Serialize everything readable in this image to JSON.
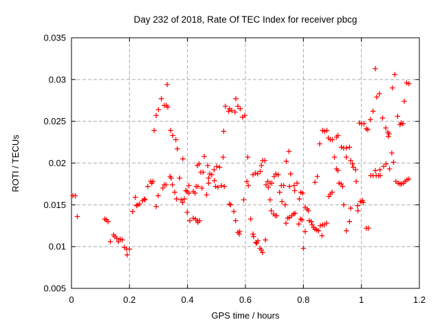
{
  "chart_data": {
    "type": "scatter",
    "title": "Day 232 of 2018, Rate Of TEC Index for receiver pbcg",
    "xlabel": "GPS time / hours",
    "ylabel": "ROTI / TECUs",
    "xlim": [
      0,
      1.2
    ],
    "ylim": [
      0.005,
      0.035
    ],
    "xticks": [
      "0",
      "0.2",
      "0.4",
      "0.6",
      "0.8",
      "1",
      "1.2"
    ],
    "yticks": [
      "0.005",
      "0.01",
      "0.015",
      "0.02",
      "0.025",
      "0.03",
      "0.035"
    ],
    "grid": true,
    "legend": "none",
    "marker": "plus",
    "marker_color": "#ff0000",
    "grid_color": "#a8a8a8",
    "axis_color": "#000000",
    "points": [
      [
        0.005,
        0.0161
      ],
      [
        0.013,
        0.0161
      ],
      [
        0.02,
        0.0136
      ],
      [
        0.115,
        0.0133
      ],
      [
        0.12,
        0.0132
      ],
      [
        0.126,
        0.013
      ],
      [
        0.134,
        0.0106
      ],
      [
        0.145,
        0.0114
      ],
      [
        0.15,
        0.0112
      ],
      [
        0.156,
        0.011
      ],
      [
        0.162,
        0.0106
      ],
      [
        0.168,
        0.0109
      ],
      [
        0.175,
        0.0108
      ],
      [
        0.183,
        0.0099
      ],
      [
        0.19,
        0.0097
      ],
      [
        0.2,
        0.0097
      ],
      [
        0.192,
        0.009
      ],
      [
        0.211,
        0.0142
      ],
      [
        0.22,
        0.0159
      ],
      [
        0.224,
        0.0149
      ],
      [
        0.229,
        0.015
      ],
      [
        0.235,
        0.0151
      ],
      [
        0.245,
        0.0155
      ],
      [
        0.251,
        0.0157
      ],
      [
        0.254,
        0.0156
      ],
      [
        0.263,
        0.0172
      ],
      [
        0.273,
        0.0178
      ],
      [
        0.277,
        0.0176
      ],
      [
        0.281,
        0.0178
      ],
      [
        0.285,
        0.0239
      ],
      [
        0.292,
        0.0257
      ],
      [
        0.292,
        0.0148
      ],
      [
        0.299,
        0.0161
      ],
      [
        0.3,
        0.0264
      ],
      [
        0.31,
        0.0277
      ],
      [
        0.315,
        0.017
      ],
      [
        0.32,
        0.0174
      ],
      [
        0.32,
        0.0269
      ],
      [
        0.326,
        0.0174
      ],
      [
        0.327,
        0.0269
      ],
      [
        0.33,
        0.0294
      ],
      [
        0.332,
        0.0267
      ],
      [
        0.34,
        0.0184
      ],
      [
        0.342,
        0.0239
      ],
      [
        0.344,
        0.0182
      ],
      [
        0.348,
        0.0174
      ],
      [
        0.349,
        0.0233
      ],
      [
        0.356,
        0.0165
      ],
      [
        0.36,
        0.0228
      ],
      [
        0.362,
        0.0157
      ],
      [
        0.365,
        0.0217
      ],
      [
        0.373,
        0.0182
      ],
      [
        0.378,
        0.0156
      ],
      [
        0.383,
        0.0153
      ],
      [
        0.384,
        0.0205
      ],
      [
        0.389,
        0.0157
      ],
      [
        0.394,
        0.0167
      ],
      [
        0.399,
        0.0166
      ],
      [
        0.399,
        0.0141
      ],
      [
        0.405,
        0.0173
      ],
      [
        0.405,
        0.0164
      ],
      [
        0.408,
        0.0131
      ],
      [
        0.42,
        0.0166
      ],
      [
        0.42,
        0.0134
      ],
      [
        0.426,
        0.0164
      ],
      [
        0.428,
        0.0133
      ],
      [
        0.43,
        0.0172
      ],
      [
        0.434,
        0.0197
      ],
      [
        0.434,
        0.0131
      ],
      [
        0.436,
        0.0172
      ],
      [
        0.436,
        0.0129
      ],
      [
        0.44,
        0.0199
      ],
      [
        0.442,
        0.0131
      ],
      [
        0.446,
        0.0189
      ],
      [
        0.45,
        0.017
      ],
      [
        0.454,
        0.0189
      ],
      [
        0.458,
        0.0208
      ],
      [
        0.466,
        0.0162
      ],
      [
        0.47,
        0.0197
      ],
      [
        0.473,
        0.0182
      ],
      [
        0.473,
        0.0176
      ],
      [
        0.477,
        0.0187
      ],
      [
        0.484,
        0.0186
      ],
      [
        0.492,
        0.0192
      ],
      [
        0.493,
        0.0179
      ],
      [
        0.497,
        0.0172
      ],
      [
        0.501,
        0.0196
      ],
      [
        0.505,
        0.0171
      ],
      [
        0.511,
        0.0195
      ],
      [
        0.517,
        0.0173
      ],
      [
        0.523,
        0.0207
      ],
      [
        0.525,
        0.0238
      ],
      [
        0.527,
        0.0172
      ],
      [
        0.531,
        0.0268
      ],
      [
        0.542,
        0.0262
      ],
      [
        0.545,
        0.0265
      ],
      [
        0.545,
        0.0151
      ],
      [
        0.549,
        0.015
      ],
      [
        0.553,
        0.0263
      ],
      [
        0.56,
        0.0142
      ],
      [
        0.564,
        0.0261
      ],
      [
        0.566,
        0.0131
      ],
      [
        0.567,
        0.0277
      ],
      [
        0.574,
        0.0268
      ],
      [
        0.574,
        0.0117
      ],
      [
        0.579,
        0.0115
      ],
      [
        0.58,
        0.0118
      ],
      [
        0.582,
        0.0265
      ],
      [
        0.59,
        0.0255
      ],
      [
        0.594,
        0.0156
      ],
      [
        0.598,
        0.0257
      ],
      [
        0.605,
        0.0178
      ],
      [
        0.608,
        0.0207
      ],
      [
        0.61,
        0.0173
      ],
      [
        0.618,
        0.0133
      ],
      [
        0.626,
        0.0186
      ],
      [
        0.626,
        0.0115
      ],
      [
        0.628,
        0.0112
      ],
      [
        0.634,
        0.0188
      ],
      [
        0.636,
        0.0105
      ],
      [
        0.639,
        0.0104
      ],
      [
        0.642,
        0.0187
      ],
      [
        0.643,
        0.0107
      ],
      [
        0.65,
        0.0098
      ],
      [
        0.651,
        0.019
      ],
      [
        0.655,
        0.0197
      ],
      [
        0.655,
        0.0096
      ],
      [
        0.659,
        0.0203
      ],
      [
        0.659,
        0.0093
      ],
      [
        0.667,
        0.0203
      ],
      [
        0.669,
        0.0108
      ],
      [
        0.671,
        0.0174
      ],
      [
        0.677,
        0.0178
      ],
      [
        0.679,
        0.0171
      ],
      [
        0.685,
        0.0176
      ],
      [
        0.685,
        0.0156
      ],
      [
        0.689,
        0.0143
      ],
      [
        0.691,
        0.0176
      ],
      [
        0.697,
        0.0139
      ],
      [
        0.699,
        0.0184
      ],
      [
        0.703,
        0.0137
      ],
      [
        0.705,
        0.0187
      ],
      [
        0.708,
        0.0137
      ],
      [
        0.713,
        0.0186
      ],
      [
        0.718,
        0.0165
      ],
      [
        0.724,
        0.0173
      ],
      [
        0.726,
        0.0154
      ],
      [
        0.732,
        0.0173
      ],
      [
        0.737,
        0.015
      ],
      [
        0.74,
        0.0128
      ],
      [
        0.741,
        0.0202
      ],
      [
        0.746,
        0.0134
      ],
      [
        0.75,
        0.0214
      ],
      [
        0.756,
        0.0187
      ],
      [
        0.752,
        0.0172
      ],
      [
        0.752,
        0.0135
      ],
      [
        0.76,
        0.0137
      ],
      [
        0.766,
        0.0139
      ],
      [
        0.768,
        0.0173
      ],
      [
        0.77,
        0.0167
      ],
      [
        0.771,
        0.014
      ],
      [
        0.778,
        0.0176
      ],
      [
        0.784,
        0.0127
      ],
      [
        0.786,
        0.0157
      ],
      [
        0.79,
        0.0133
      ],
      [
        0.791,
        0.0165
      ],
      [
        0.795,
        0.0132
      ],
      [
        0.797,
        0.0164
      ],
      [
        0.8,
        0.0098
      ],
      [
        0.806,
        0.0147
      ],
      [
        0.806,
        0.0118
      ],
      [
        0.813,
        0.0145
      ],
      [
        0.817,
        0.0143
      ],
      [
        0.82,
        0.0131
      ],
      [
        0.827,
        0.013
      ],
      [
        0.83,
        0.0126
      ],
      [
        0.835,
        0.0123
      ],
      [
        0.84,
        0.0177
      ],
      [
        0.84,
        0.0121
      ],
      [
        0.846,
        0.012
      ],
      [
        0.848,
        0.0184
      ],
      [
        0.852,
        0.0119
      ],
      [
        0.856,
        0.0223
      ],
      [
        0.858,
        0.0125
      ],
      [
        0.864,
        0.0113
      ],
      [
        0.866,
        0.0239
      ],
      [
        0.866,
        0.0126
      ],
      [
        0.872,
        0.0126
      ],
      [
        0.873,
        0.0238
      ],
      [
        0.88,
        0.0128
      ],
      [
        0.881,
        0.0239
      ],
      [
        0.886,
        0.023
      ],
      [
        0.888,
        0.016
      ],
      [
        0.893,
        0.0228
      ],
      [
        0.893,
        0.0163
      ],
      [
        0.899,
        0.0165
      ],
      [
        0.9,
        0.0228
      ],
      [
        0.907,
        0.0207
      ],
      [
        0.914,
        0.0231
      ],
      [
        0.914,
        0.0193
      ],
      [
        0.919,
        0.0233
      ],
      [
        0.919,
        0.0191
      ],
      [
        0.923,
        0.0176
      ],
      [
        0.93,
        0.0175
      ],
      [
        0.931,
        0.0219
      ],
      [
        0.935,
        0.0172
      ],
      [
        0.939,
        0.0218
      ],
      [
        0.939,
        0.015
      ],
      [
        0.948,
        0.0218
      ],
      [
        0.948,
        0.0207
      ],
      [
        0.948,
        0.0119
      ],
      [
        0.959,
        0.0219
      ],
      [
        0.959,
        0.013
      ],
      [
        0.963,
        0.0203
      ],
      [
        0.963,
        0.0146
      ],
      [
        0.969,
        0.0199
      ],
      [
        0.972,
        0.0195
      ],
      [
        0.98,
        0.0192
      ],
      [
        0.982,
        0.0178
      ],
      [
        0.987,
        0.0149
      ],
      [
        0.988,
        0.0143
      ],
      [
        0.993,
        0.0248
      ],
      [
        0.996,
        0.0154
      ],
      [
        1.001,
        0.0247
      ],
      [
        1.004,
        0.0155
      ],
      [
        1.006,
        0.0153
      ],
      [
        1.009,
        0.0247
      ],
      [
        1.017,
        0.0241
      ],
      [
        1.017,
        0.0122
      ],
      [
        1.022,
        0.024
      ],
      [
        1.024,
        0.0122
      ],
      [
        1.031,
        0.0252
      ],
      [
        1.032,
        0.0185
      ],
      [
        1.04,
        0.0262
      ],
      [
        1.04,
        0.0185
      ],
      [
        1.048,
        0.0313
      ],
      [
        1.048,
        0.0191
      ],
      [
        1.051,
        0.0185
      ],
      [
        1.053,
        0.0279
      ],
      [
        1.059,
        0.0185
      ],
      [
        1.062,
        0.0283
      ],
      [
        1.064,
        0.0192
      ],
      [
        1.065,
        0.0185
      ],
      [
        1.073,
        0.0254
      ],
      [
        1.077,
        0.0196
      ],
      [
        1.084,
        0.0242
      ],
      [
        1.085,
        0.0199
      ],
      [
        1.091,
        0.0237
      ],
      [
        1.093,
        0.0232
      ],
      [
        1.095,
        0.0235
      ],
      [
        1.097,
        0.0193
      ],
      [
        1.105,
        0.0212
      ],
      [
        1.107,
        0.029
      ],
      [
        1.111,
        0.0201
      ],
      [
        1.115,
        0.0306
      ],
      [
        1.119,
        0.0178
      ],
      [
        1.125,
        0.0256
      ],
      [
        1.127,
        0.0176
      ],
      [
        1.133,
        0.0246
      ],
      [
        1.133,
        0.0175
      ],
      [
        1.137,
        0.0248
      ],
      [
        1.138,
        0.0175
      ],
      [
        1.143,
        0.0247
      ],
      [
        1.145,
        0.0176
      ],
      [
        1.148,
        0.0274
      ],
      [
        1.151,
        0.0178
      ],
      [
        1.156,
        0.0296
      ],
      [
        1.157,
        0.018
      ],
      [
        1.164,
        0.0295
      ],
      [
        1.164,
        0.0181
      ]
    ]
  }
}
